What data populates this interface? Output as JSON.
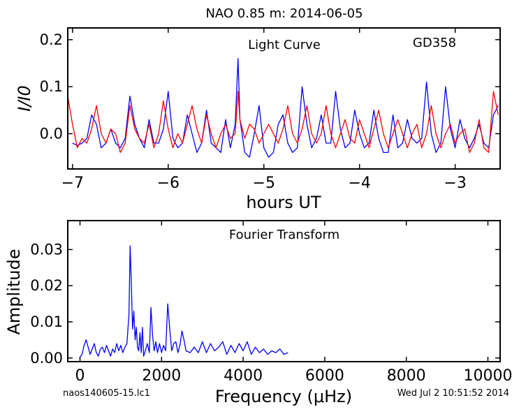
{
  "figure": {
    "title": "NAO 0.85 m:  2014-06-05",
    "footer_left": "naos140605-15.lc1",
    "footer_right": "Wed Jul  2 10:51:52 2014"
  },
  "chart_data": [
    {
      "type": "line",
      "annotation": "Light Curve",
      "target": "GD358",
      "xlabel": "hours UT",
      "ylabel": "I/I0",
      "xlim": [
        -7.05,
        -2.53
      ],
      "ylim": [
        -0.075,
        0.225
      ],
      "xticks": [
        -7,
        -6,
        -5,
        -4,
        -3
      ],
      "xtick_labels": [
        "−7",
        "−6",
        "−5",
        "−4",
        "−3"
      ],
      "yticks": [
        0.0,
        0.1,
        0.2
      ],
      "ytick_labels": [
        "0.0",
        "0.1",
        "0.2"
      ],
      "grid": false,
      "series": [
        {
          "color": "#0000ff",
          "x": [
            -7.0,
            -6.95,
            -6.9,
            -6.85,
            -6.8,
            -6.75,
            -6.7,
            -6.65,
            -6.6,
            -6.55,
            -6.5,
            -6.45,
            -6.4,
            -6.35,
            -6.3,
            -6.25,
            -6.2,
            -6.15,
            -6.1,
            -6.05,
            -6.0,
            -5.95,
            -5.9,
            -5.85,
            -5.8,
            -5.75,
            -5.7,
            -5.65,
            -5.6,
            -5.55,
            -5.5,
            -5.45,
            -5.4,
            -5.35,
            -5.3,
            -5.27,
            -5.25,
            -5.2,
            -5.15,
            -5.1,
            -5.05,
            -5.0,
            -4.95,
            -4.9,
            -4.85,
            -4.8,
            -4.75,
            -4.7,
            -4.65,
            -4.6,
            -4.55,
            -4.5,
            -4.45,
            -4.4,
            -4.35,
            -4.3,
            -4.25,
            -4.2,
            -4.15,
            -4.1,
            -4.05,
            -4.0,
            -3.95,
            -3.9,
            -3.85,
            -3.8,
            -3.75,
            -3.7,
            -3.65,
            -3.6,
            -3.55,
            -3.5,
            -3.45,
            -3.4,
            -3.35,
            -3.3,
            -3.25,
            -3.2,
            -3.15,
            -3.1,
            -3.05,
            -3.0,
            -2.95,
            -2.9,
            -2.85,
            -2.8,
            -2.75,
            -2.7,
            -2.65,
            -2.6,
            -2.55
          ],
          "y": [
            -0.02,
            -0.025,
            -0.02,
            -0.01,
            0.04,
            0.02,
            -0.03,
            -0.02,
            0.01,
            -0.02,
            -0.03,
            -0.01,
            0.08,
            0.02,
            -0.01,
            -0.03,
            0.03,
            -0.02,
            -0.02,
            0.01,
            0.09,
            -0.01,
            -0.03,
            -0.02,
            0.04,
            0.0,
            -0.04,
            -0.02,
            0.05,
            -0.02,
            -0.03,
            -0.04,
            0.03,
            -0.03,
            0.02,
            0.16,
            0.03,
            -0.04,
            -0.05,
            0.0,
            0.06,
            -0.03,
            -0.05,
            -0.04,
            0.02,
            0.04,
            -0.02,
            -0.04,
            -0.03,
            0.1,
            0.02,
            -0.03,
            -0.01,
            0.04,
            -0.02,
            -0.02,
            0.09,
            0.01,
            -0.03,
            -0.02,
            0.05,
            0.0,
            -0.03,
            -0.02,
            0.05,
            -0.01,
            -0.04,
            -0.04,
            0.04,
            -0.03,
            -0.02,
            0.03,
            -0.01,
            -0.02,
            -0.01,
            0.11,
            0.0,
            -0.04,
            -0.02,
            0.1,
            0.01,
            -0.03,
            0.03,
            -0.01,
            -0.03,
            -0.01,
            0.02,
            -0.02,
            -0.03,
            0.04,
            0.06
          ]
        },
        {
          "color": "#ff0000",
          "x": [
            -7.05,
            -7.0,
            -6.95,
            -6.9,
            -6.85,
            -6.8,
            -6.75,
            -6.7,
            -6.65,
            -6.6,
            -6.55,
            -6.5,
            -6.45,
            -6.4,
            -6.35,
            -6.3,
            -6.25,
            -6.2,
            -6.15,
            -6.1,
            -6.05,
            -6.0,
            -5.95,
            -5.9,
            -5.85,
            -5.8,
            -5.75,
            -5.7,
            -5.65,
            -5.6,
            -5.55,
            -5.5,
            -5.45,
            -5.4,
            -5.35,
            -5.3,
            -5.27,
            -5.25,
            -5.2,
            -5.15,
            -5.1,
            -5.05,
            -5.0,
            -4.95,
            -4.9,
            -4.85,
            -4.8,
            -4.75,
            -4.7,
            -4.65,
            -4.6,
            -4.55,
            -4.5,
            -4.45,
            -4.4,
            -4.35,
            -4.3,
            -4.25,
            -4.2,
            -4.15,
            -4.1,
            -4.05,
            -4.0,
            -3.95,
            -3.9,
            -3.85,
            -3.8,
            -3.75,
            -3.7,
            -3.65,
            -3.6,
            -3.55,
            -3.5,
            -3.45,
            -3.4,
            -3.35,
            -3.3,
            -3.25,
            -3.2,
            -3.15,
            -3.1,
            -3.05,
            -3.0,
            -2.95,
            -2.9,
            -2.85,
            -2.8,
            -2.75,
            -2.7,
            -2.65,
            -2.6,
            -2.55
          ],
          "y": [
            0.08,
            0.02,
            -0.03,
            -0.01,
            -0.02,
            0.01,
            0.06,
            0.0,
            -0.02,
            0.01,
            0.0,
            -0.04,
            -0.02,
            0.06,
            0.01,
            -0.01,
            -0.02,
            0.02,
            -0.03,
            0.0,
            0.07,
            0.01,
            -0.03,
            0.0,
            -0.02,
            0.02,
            0.06,
            0.01,
            -0.02,
            0.04,
            0.0,
            -0.03,
            0.0,
            0.02,
            -0.01,
            0.0,
            0.09,
            0.03,
            -0.01,
            0.02,
            0.01,
            -0.02,
            0.0,
            0.02,
            0.0,
            -0.02,
            0.01,
            0.06,
            0.0,
            -0.02,
            0.01,
            0.06,
            0.0,
            -0.02,
            0.0,
            0.06,
            0.0,
            -0.03,
            0.0,
            0.03,
            -0.01,
            -0.02,
            0.03,
            0.0,
            -0.03,
            0.01,
            0.05,
            0.0,
            -0.03,
            0.0,
            0.03,
            0.0,
            -0.03,
            0.0,
            0.02,
            -0.03,
            0.0,
            0.06,
            0.0,
            -0.03,
            0.0,
            0.02,
            -0.02,
            0.0,
            0.01,
            -0.04,
            -0.02,
            0.03,
            -0.03,
            -0.04,
            0.09,
            0.04
          ]
        }
      ]
    },
    {
      "type": "line",
      "annotation": "Fourier Transform",
      "xlabel": "Frequency (μHz)",
      "ylabel": "Amplitude",
      "xlim": [
        -300,
        10300
      ],
      "ylim": [
        -0.001,
        0.038
      ],
      "xticks": [
        0,
        2000,
        4000,
        6000,
        8000,
        10000
      ],
      "xtick_labels": [
        "0",
        "2000",
        "4000",
        "6000",
        "8000",
        "10000"
      ],
      "yticks": [
        0.0,
        0.01,
        0.02,
        0.03
      ],
      "ytick_labels": [
        "0.00",
        "0.01",
        "0.02",
        "0.03"
      ],
      "grid": false,
      "series": [
        {
          "color": "#0000ff",
          "x": [
            0,
            50,
            100,
            150,
            200,
            250,
            300,
            350,
            400,
            450,
            500,
            550,
            600,
            650,
            700,
            750,
            800,
            850,
            900,
            950,
            1000,
            1050,
            1100,
            1150,
            1200,
            1230,
            1260,
            1290,
            1320,
            1350,
            1380,
            1410,
            1440,
            1470,
            1500,
            1530,
            1560,
            1600,
            1650,
            1700,
            1740,
            1780,
            1820,
            1860,
            1900,
            1950,
            2000,
            2050,
            2100,
            2150,
            2200,
            2250,
            2300,
            2350,
            2400,
            2450,
            2500,
            2550,
            2600,
            2700,
            2800,
            2900,
            3000,
            3100,
            3200,
            3300,
            3400,
            3500,
            3600,
            3700,
            3800,
            3900,
            4000,
            4100,
            4200,
            4300,
            4400,
            4500,
            4600,
            4700,
            4800,
            4900,
            5000,
            5100
          ],
          "y": [
            0.0002,
            0.001,
            0.0035,
            0.005,
            0.003,
            0.001,
            0.0025,
            0.004,
            0.0015,
            0.0005,
            0.0025,
            0.003,
            0.0015,
            0.0035,
            0.002,
            0.0005,
            0.0025,
            0.0015,
            0.004,
            0.002,
            0.0035,
            0.0015,
            0.003,
            0.004,
            0.012,
            0.031,
            0.02,
            0.008,
            0.013,
            0.005,
            0.0085,
            0.003,
            0.002,
            0.007,
            0.0015,
            0.0085,
            0.0005,
            0.002,
            0.004,
            0.0015,
            0.014,
            0.006,
            0.002,
            0.0045,
            0.0015,
            0.004,
            0.0015,
            0.0035,
            0.002,
            0.015,
            0.008,
            0.002,
            0.004,
            0.0045,
            0.0015,
            0.0035,
            0.0075,
            0.005,
            0.002,
            0.0015,
            0.003,
            0.0015,
            0.0045,
            0.0015,
            0.004,
            0.002,
            0.003,
            0.0045,
            0.001,
            0.0035,
            0.0015,
            0.004,
            0.002,
            0.0045,
            0.001,
            0.003,
            0.0015,
            0.0025,
            0.001,
            0.002,
            0.0015,
            0.0025,
            0.001,
            0.0015
          ]
        }
      ]
    }
  ]
}
